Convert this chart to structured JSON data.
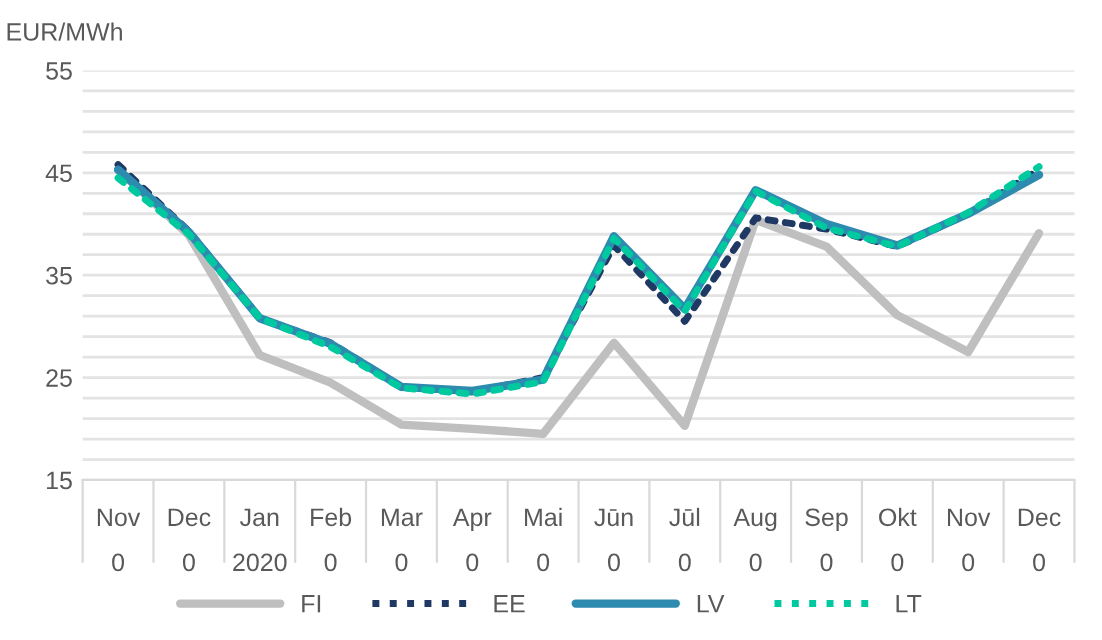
{
  "chart_data": {
    "type": "line",
    "ylabel": "EUR/MWh",
    "categories": [
      "Nov\n0",
      "Dec\n0",
      "Jan\n2020",
      "Feb\n0",
      "Mar\n0",
      "Apr\n0",
      "Mai\n0",
      "Jūn\n0",
      "Jūl\n0",
      "Aug\n0",
      "Sep\n0",
      "Okt\n0",
      "Nov\n0",
      "Dec\n0"
    ],
    "series": [
      {
        "name": "FI",
        "color": "#bfbfbf",
        "line_style": "solid",
        "values": [
          45.3,
          38.9,
          27.2,
          24.5,
          20.4,
          20.0,
          19.5,
          28.4,
          20.3,
          40.4,
          37.8,
          31.1,
          27.5,
          39.1
        ]
      },
      {
        "name": "EE",
        "color": "#1f3864",
        "line_style": "dotted",
        "values": [
          45.8,
          39.3,
          30.8,
          28.4,
          24.1,
          23.6,
          25.0,
          37.9,
          30.5,
          40.6,
          39.5,
          37.8,
          41.0,
          45.3
        ]
      },
      {
        "name": "LV",
        "color": "#2e8bb0",
        "line_style": "solid",
        "values": [
          45.3,
          39.2,
          30.8,
          28.3,
          24.1,
          23.7,
          24.8,
          38.8,
          31.7,
          43.3,
          40.0,
          37.9,
          41.0,
          44.8
        ]
      },
      {
        "name": "LT",
        "color": "#00c9a0",
        "line_style": "dotted",
        "values": [
          44.5,
          39.0,
          30.8,
          28.0,
          24.0,
          23.4,
          24.6,
          38.6,
          31.5,
          43.2,
          39.6,
          37.8,
          41.1,
          45.6
        ]
      }
    ],
    "ylim": [
      15,
      55
    ],
    "yticks": [
      15,
      {
        "value": 17,
        "label": null
      },
      {
        "value": 19,
        "label": null
      },
      {
        "value": 21,
        "label": null
      },
      {
        "value": 23,
        "label": null
      },
      25,
      {
        "value": 27,
        "label": null
      },
      {
        "value": 29,
        "label": null
      },
      {
        "value": 31,
        "label": null
      },
      {
        "value": 33,
        "label": null
      },
      35,
      {
        "value": 37,
        "label": null
      },
      {
        "value": 39,
        "label": null
      },
      {
        "value": 41,
        "label": null
      },
      {
        "value": 43,
        "label": null
      },
      45,
      {
        "value": 47,
        "label": null
      },
      {
        "value": 49,
        "label": null
      },
      {
        "value": 51,
        "label": null
      },
      {
        "value": 53,
        "label": null
      },
      55
    ],
    "grid": "y",
    "legend": "bottom",
    "marker": "none"
  }
}
